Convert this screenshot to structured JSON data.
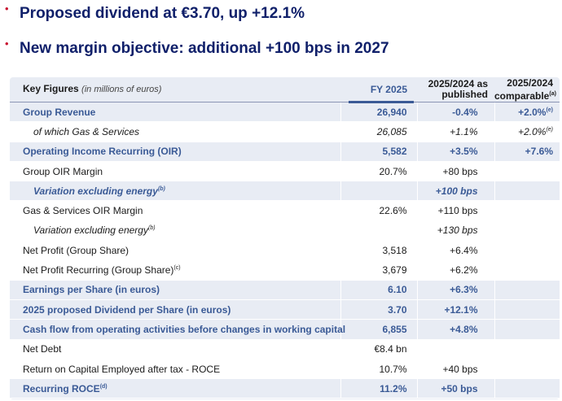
{
  "bullets": [
    {
      "text": "Proposed dividend at €3.70, up +12.1%"
    },
    {
      "text": "New margin objective: additional +100 bps in 2027"
    }
  ],
  "table": {
    "header": {
      "label": "Key Figures",
      "label_sub": "(in millions of euros)",
      "col1": "FY 2025",
      "col2_line1": "2025/2024 as",
      "col2_line2": "published",
      "col3_line1": "2025/2024",
      "col3_line2": "comparable",
      "col3_note": "(a)"
    },
    "rows": [
      {
        "label": "Group Revenue",
        "note": "",
        "fy": "26,940",
        "pub": "-0.4%",
        "comp": "+2.0%",
        "comp_note": "(e)"
      },
      {
        "label": "of which Gas & Services",
        "note": "",
        "fy": "26,085",
        "pub": "+1.1%",
        "comp": "+2.0%",
        "comp_note": "(e)"
      },
      {
        "label": "Operating Income Recurring (OIR)",
        "note": "",
        "fy": "5,582",
        "pub": "+3.5%",
        "comp": "+7.6%",
        "comp_note": ""
      },
      {
        "label": "Group OIR Margin",
        "note": "",
        "fy": "20.7%",
        "pub": "+80 bps",
        "comp": "",
        "comp_note": ""
      },
      {
        "label": "Variation excluding energy",
        "note": "(b)",
        "fy": "",
        "pub": "+100 bps",
        "comp": "",
        "comp_note": ""
      },
      {
        "label": "Gas & Services OIR Margin",
        "note": "",
        "fy": "22.6%",
        "pub": "+110 bps",
        "comp": "",
        "comp_note": ""
      },
      {
        "label": "Variation excluding energy",
        "note": "(b)",
        "fy": "",
        "pub": "+130 bps",
        "comp": "",
        "comp_note": ""
      },
      {
        "label": "Net Profit (Group Share)",
        "note": "",
        "fy": "3,518",
        "pub": "+6.4%",
        "comp": "",
        "comp_note": ""
      },
      {
        "label": "Net Profit Recurring (Group Share)",
        "note": "(c)",
        "fy": "3,679",
        "pub": "+6.2%",
        "comp": "",
        "comp_note": ""
      },
      {
        "label": "Earnings per Share (in euros)",
        "note": "",
        "fy": "6.10",
        "pub": "+6.3%",
        "comp": "",
        "comp_note": ""
      },
      {
        "label": "2025 proposed Dividend per Share (in euros)",
        "note": "",
        "fy": "3.70",
        "pub": "+12.1%",
        "comp": "",
        "comp_note": ""
      },
      {
        "label": "Cash flow from operating activities before changes in working capital",
        "note": "",
        "fy": "6,855",
        "pub": "+4.8%",
        "comp": "",
        "comp_note": ""
      },
      {
        "label": "Net Debt",
        "note": "",
        "fy": "€8.4 bn",
        "pub": "",
        "comp": "",
        "comp_note": ""
      },
      {
        "label": "Return on Capital Employed after tax - ROCE",
        "note": "",
        "fy": "10.7%",
        "pub": "+40 bps",
        "comp": "",
        "comp_note": ""
      },
      {
        "label": "Recurring ROCE",
        "note": "(d)",
        "fy": "11.2%",
        "pub": "+50 bps",
        "comp": "",
        "comp_note": ""
      }
    ]
  }
}
